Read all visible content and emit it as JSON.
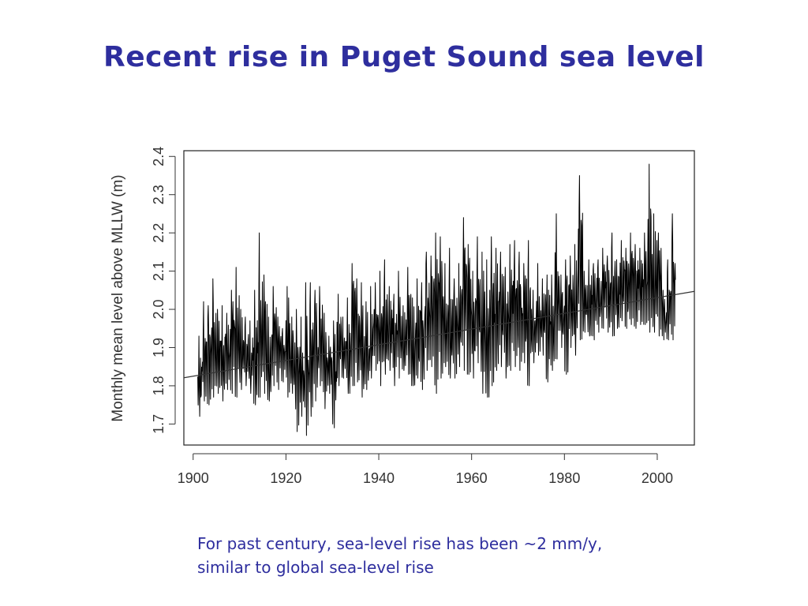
{
  "slide": {
    "title": "Recent rise in Puget Sound sea level",
    "caption_line1": "For past century, sea-level rise has been ~2 mm/y,",
    "caption_line2": "similar to global sea-level rise",
    "title_color": "#2e2e9e"
  },
  "chart_data": {
    "type": "line",
    "title": "",
    "xlabel": "",
    "ylabel": "Monthly mean level above MLLW (m)",
    "xlim": [
      1898,
      2008
    ],
    "ylim": [
      1.645,
      2.415
    ],
    "x_ticks": [
      1900,
      1920,
      1940,
      1960,
      1980,
      2000
    ],
    "y_ticks": [
      1.7,
      1.8,
      1.9,
      2.0,
      2.1,
      2.2,
      2.3,
      2.4
    ],
    "grid": false,
    "legend": "none",
    "series": [
      {
        "kind": "monthly-mean-line",
        "color": "#000000",
        "x": [
          1901,
          1902,
          1903,
          1904,
          1905,
          1906,
          1907,
          1908,
          1909,
          1910,
          1911,
          1912,
          1913,
          1914,
          1915,
          1916,
          1917,
          1918,
          1919,
          1920,
          1921,
          1922,
          1923,
          1924,
          1925,
          1926,
          1927,
          1928,
          1929,
          1930,
          1931,
          1932,
          1933,
          1934,
          1935,
          1936,
          1937,
          1938,
          1939,
          1940,
          1941,
          1942,
          1943,
          1944,
          1945,
          1946,
          1947,
          1948,
          1949,
          1950,
          1951,
          1952,
          1953,
          1954,
          1955,
          1956,
          1957,
          1958,
          1959,
          1960,
          1961,
          1962,
          1963,
          1964,
          1965,
          1966,
          1967,
          1968,
          1969,
          1970,
          1971,
          1972,
          1973,
          1974,
          1975,
          1976,
          1977,
          1978,
          1979,
          1980,
          1981,
          1982,
          1983,
          1984,
          1985,
          1986,
          1987,
          1988,
          1989,
          1990,
          1991,
          1992,
          1993,
          1994,
          1995,
          1996,
          1997,
          1998,
          1999,
          2000,
          2001,
          2002,
          2003
        ],
        "annual_min": [
          1.72,
          1.76,
          1.75,
          1.77,
          1.78,
          1.76,
          1.79,
          1.78,
          1.77,
          1.79,
          1.8,
          1.78,
          1.75,
          1.77,
          1.78,
          1.76,
          1.8,
          1.79,
          1.81,
          1.77,
          1.78,
          1.68,
          1.72,
          1.67,
          1.72,
          1.76,
          1.8,
          1.74,
          1.78,
          1.69,
          1.8,
          1.82,
          1.78,
          1.8,
          1.81,
          1.77,
          1.79,
          1.82,
          1.84,
          1.8,
          1.83,
          1.84,
          1.8,
          1.82,
          1.84,
          1.83,
          1.8,
          1.82,
          1.79,
          1.84,
          1.85,
          1.78,
          1.82,
          1.85,
          1.82,
          1.82,
          1.85,
          1.84,
          1.83,
          1.82,
          1.86,
          1.78,
          1.77,
          1.8,
          1.84,
          1.85,
          1.82,
          1.84,
          1.85,
          1.84,
          1.86,
          1.8,
          1.86,
          1.88,
          1.88,
          1.81,
          1.84,
          1.87,
          1.9,
          1.83,
          1.9,
          1.88,
          1.92,
          1.94,
          1.93,
          1.92,
          1.94,
          1.95,
          1.94,
          1.93,
          1.95,
          1.97,
          1.95,
          1.96,
          1.95,
          1.96,
          1.96,
          1.94,
          1.94,
          1.93,
          1.92,
          1.92,
          1.92
        ],
        "annual_max": [
          1.93,
          2.02,
          2.01,
          2.08,
          2.0,
          2.01,
          1.99,
          2.05,
          2.11,
          2.0,
          1.98,
          1.97,
          2.05,
          2.2,
          2.09,
          1.98,
          2.06,
          1.98,
          1.95,
          2.06,
          1.98,
          2.0,
          1.98,
          2.07,
          2.07,
          2.05,
          2.06,
          1.99,
          1.93,
          1.97,
          2.04,
          1.98,
          2.03,
          2.12,
          2.08,
          2.07,
          2.02,
          2.06,
          2.07,
          2.1,
          2.13,
          2.06,
          2.04,
          2.1,
          2.01,
          2.11,
          2.03,
          2.08,
          2.07,
          2.15,
          2.14,
          2.2,
          2.19,
          2.12,
          2.16,
          2.08,
          2.12,
          2.24,
          2.17,
          2.1,
          2.19,
          2.15,
          2.13,
          2.19,
          2.16,
          2.15,
          2.11,
          2.17,
          2.18,
          2.15,
          2.12,
          2.18,
          2.05,
          2.12,
          2.08,
          2.09,
          2.09,
          2.25,
          2.09,
          2.13,
          2.14,
          2.17,
          2.35,
          2.1,
          2.13,
          2.12,
          2.13,
          2.16,
          2.14,
          2.2,
          2.13,
          2.18,
          2.16,
          2.2,
          2.17,
          2.16,
          2.2,
          2.38,
          2.25,
          2.2,
          2.05,
          2.13,
          2.25
        ]
      },
      {
        "kind": "linear-trend",
        "color": "#333333",
        "x": [
          1898,
          2008
        ],
        "y": [
          1.821,
          2.047
        ]
      }
    ]
  }
}
